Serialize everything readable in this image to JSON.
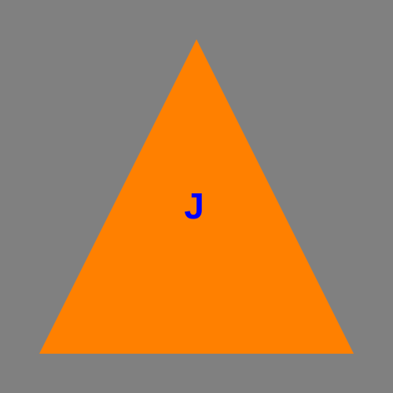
{
  "shape": {
    "type": "triangle",
    "fill_color": "#FF8000",
    "label": "J",
    "label_color": "#0000FF"
  },
  "background_color": "#808080"
}
